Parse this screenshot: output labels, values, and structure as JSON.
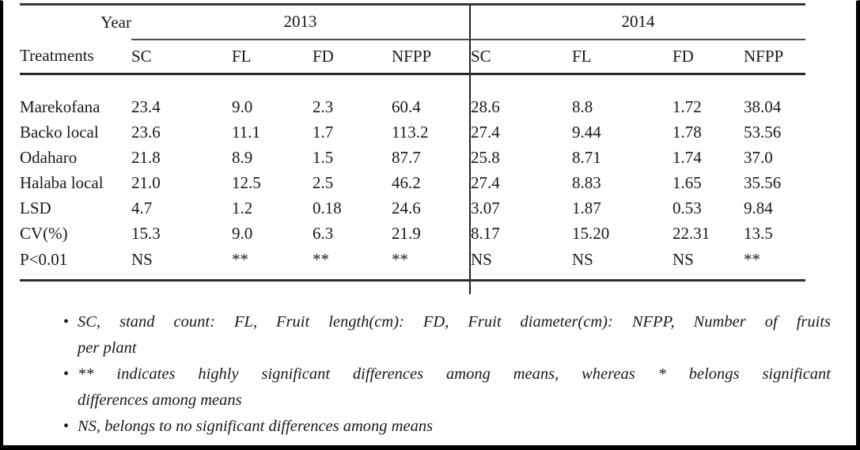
{
  "table": {
    "year_label": "Year",
    "year_groups": [
      {
        "label": "2013"
      },
      {
        "label": "2014"
      }
    ],
    "col_header": "Treatments",
    "sub_headers": [
      "SC",
      "FL",
      "FD",
      "NFPP",
      "SC",
      "FL",
      "FD",
      "NFPP"
    ],
    "rows": [
      {
        "name": "Marekofana",
        "values": [
          "23.4",
          "9.0",
          "2.3",
          "60.4",
          "28.6",
          "8.8",
          "1.72",
          "38.04"
        ]
      },
      {
        "name": "Backo local",
        "values": [
          "23.6",
          "11.1",
          "1.7",
          "113.2",
          "27.4",
          "9.44",
          "1.78",
          "53.56"
        ]
      },
      {
        "name": "Odaharo",
        "values": [
          "21.8",
          "8.9",
          "1.5",
          "87.7",
          "25.8",
          "8.71",
          "1.74",
          "37.0"
        ]
      },
      {
        "name": "Halaba local",
        "values": [
          "21.0",
          "12.5",
          "2.5",
          "46.2",
          "27.4",
          "8.83",
          "1.65",
          "35.56"
        ]
      },
      {
        "name": "LSD",
        "values": [
          "4.7",
          "1.2",
          "0.18",
          "24.6",
          "3.07",
          "1.87",
          "0.53",
          "9.84"
        ]
      },
      {
        "name": "CV(%)",
        "values": [
          "15.3",
          "9.0",
          "6.3",
          "21.9",
          "8.17",
          "15.20",
          "22.31",
          "13.5"
        ]
      },
      {
        "name": "P<0.01",
        "values": [
          "NS",
          "**",
          "**",
          "**",
          "NS",
          "NS",
          "NS",
          "**"
        ]
      }
    ]
  },
  "footnotes": [
    {
      "bullet": "•",
      "lines": [
        "SC, stand count: FL, Fruit length(cm): FD, Fruit diameter(cm): NFPP, Number of fruits",
        "per plant"
      ]
    },
    {
      "bullet": "•",
      "lines": [
        "** indicates highly significant differences among means, whereas * belongs significant",
        "differences among means"
      ]
    },
    {
      "bullet": "•",
      "lines": [
        "NS, belongs to no significant differences among means"
      ]
    }
  ],
  "colors": {
    "text": "#191919",
    "rule": "#2e2e2e",
    "frame": "#000000"
  }
}
